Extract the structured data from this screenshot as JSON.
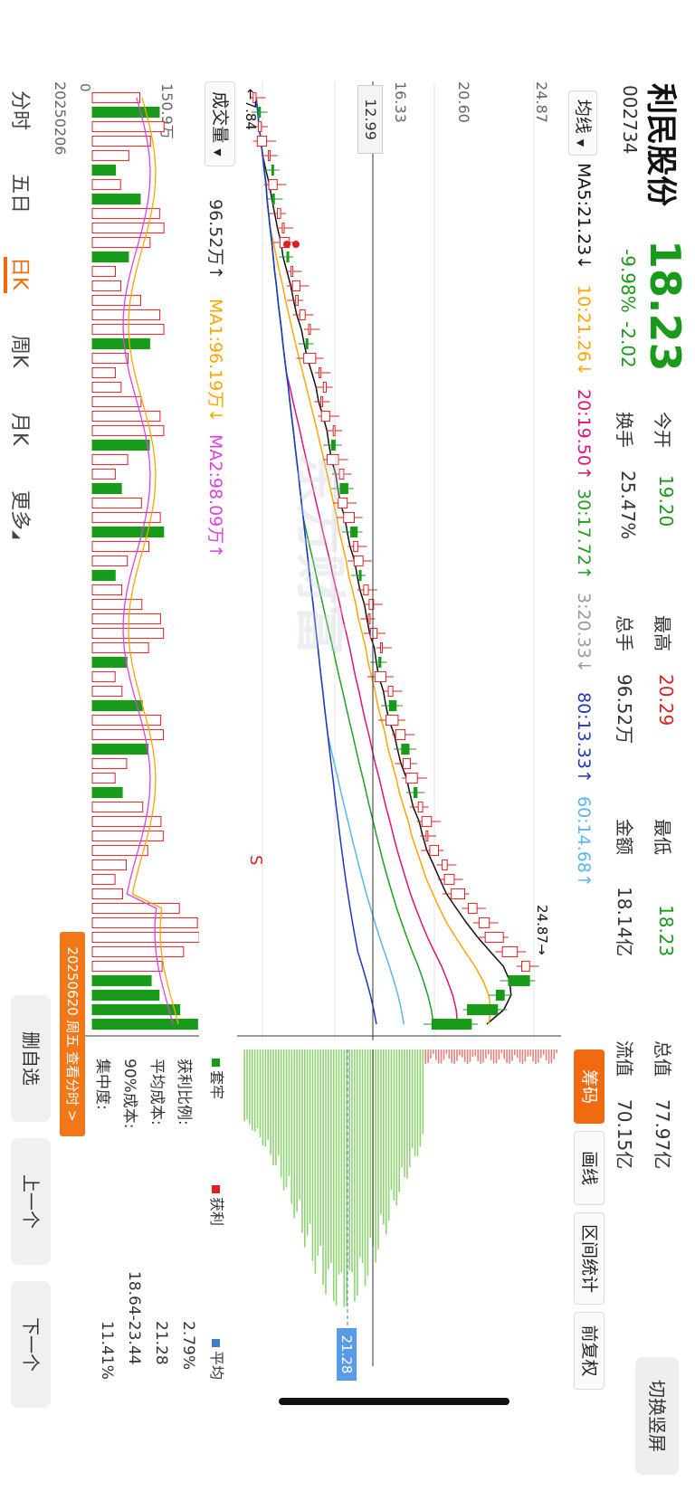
{
  "header": {
    "stock_name": "利民股份",
    "stock_code": "002734",
    "price": "18.23",
    "change_pct": "-9.98%",
    "change_amt": "-2.02",
    "open_label": "今开",
    "open_value": "19.20",
    "high_label": "最高",
    "high_value": "20.29",
    "low_label": "最低",
    "low_value": "18.23",
    "mcap_label": "总值",
    "mcap_value": "77.97亿",
    "turnover_label": "换手",
    "turnover_value": "25.47%",
    "vol_label": "总手",
    "vol_value": "96.52万",
    "amount_label": "金额",
    "amount_value": "18.14亿",
    "float_label": "流值",
    "float_value": "70.15亿",
    "switch_screen": "切换竖屏"
  },
  "ma_bar": {
    "selector": "均线",
    "ma5": "MA5:21.23↓",
    "ma10": "10:21.26↓",
    "ma20": "20:19.50↑",
    "ma30": "30:17.72↑",
    "ma3": "3:20.33↓",
    "ma80": "80:13.33↑",
    "ma60": "60:14.68↑"
  },
  "price_axis": {
    "p1": "24.87",
    "p2": "20.60",
    "p3": "16.33",
    "p4": "12.99",
    "min_arrow": "←7.84",
    "max_arrow": "24.87→"
  },
  "volume_bar": {
    "selector": "成交量",
    "value": "96.52万↑",
    "ma1": "MA1:96.19万↓",
    "ma2": "MA2:98.09万↑",
    "axis_max": "150.9万",
    "axis_zero": "0"
  },
  "date_start": "20250206",
  "date_tooltip": "20250620 周五 查看分时 >",
  "signal_s": "S",
  "chip_panel": {
    "tabs": [
      "筹码",
      "画线",
      "区间统计",
      "前复权"
    ],
    "avg_price_tag": "21.28",
    "legend_trap": "套牢",
    "legend_profit": "获利",
    "legend_avg": "平均",
    "profit_ratio_label": "获利比例:",
    "profit_ratio_value": "2.79%",
    "avg_cost_label": "平均成本:",
    "avg_cost_value": "21.28",
    "cost90_label": "90%成本:",
    "cost90_value": "18.64-23.44",
    "concentration_label": "集中度:",
    "concentration_value": "11.41%"
  },
  "period_tabs": [
    "分时",
    "五日",
    "日K",
    "周K",
    "月K",
    "更多"
  ],
  "active_period": "日K",
  "side_buttons": {
    "delete_watch": "删自选",
    "prev": "上一个",
    "next": "下一个"
  },
  "watermark": "东方财富",
  "colors": {
    "up": "#e02020",
    "down": "#1a9a1a",
    "accent": "#ff6600",
    "ma5": "#111111",
    "ma10": "#ffa500",
    "ma20": "#e0117a",
    "ma30": "#20a020",
    "ma60": "#5ab5f0",
    "ma80": "#2036c0",
    "ma3": "#999999",
    "chip_green": "#8fd472"
  },
  "chart_data": {
    "type": "candlestick",
    "ylim": [
      7.84,
      24.87
    ],
    "close_trend": [
      8.2,
      8.4,
      8.5,
      8.8,
      9.0,
      9.1,
      9.4,
      9.2,
      9.6,
      9.8,
      10.1,
      10.0,
      10.3,
      10.7,
      10.6,
      11.0,
      11.3,
      11.1,
      11.6,
      11.9,
      12.2,
      12.0,
      12.4,
      12.7,
      12.5,
      12.9,
      13.2,
      13.0,
      13.4,
      13.8,
      13.6,
      14.0,
      14.3,
      14.1,
      14.6,
      14.9,
      14.7,
      15.1,
      15.4,
      15.2,
      15.6,
      16.0,
      15.8,
      16.3,
      16.7,
      16.5,
      17.0,
      17.4,
      17.2,
      17.7,
      18.2,
      18.0,
      18.6,
      19.1,
      19.5,
      20.1,
      20.8,
      21.5,
      22.3,
      23.1,
      23.8,
      22.6,
      21.9,
      20.25,
      18.23
    ]
  }
}
